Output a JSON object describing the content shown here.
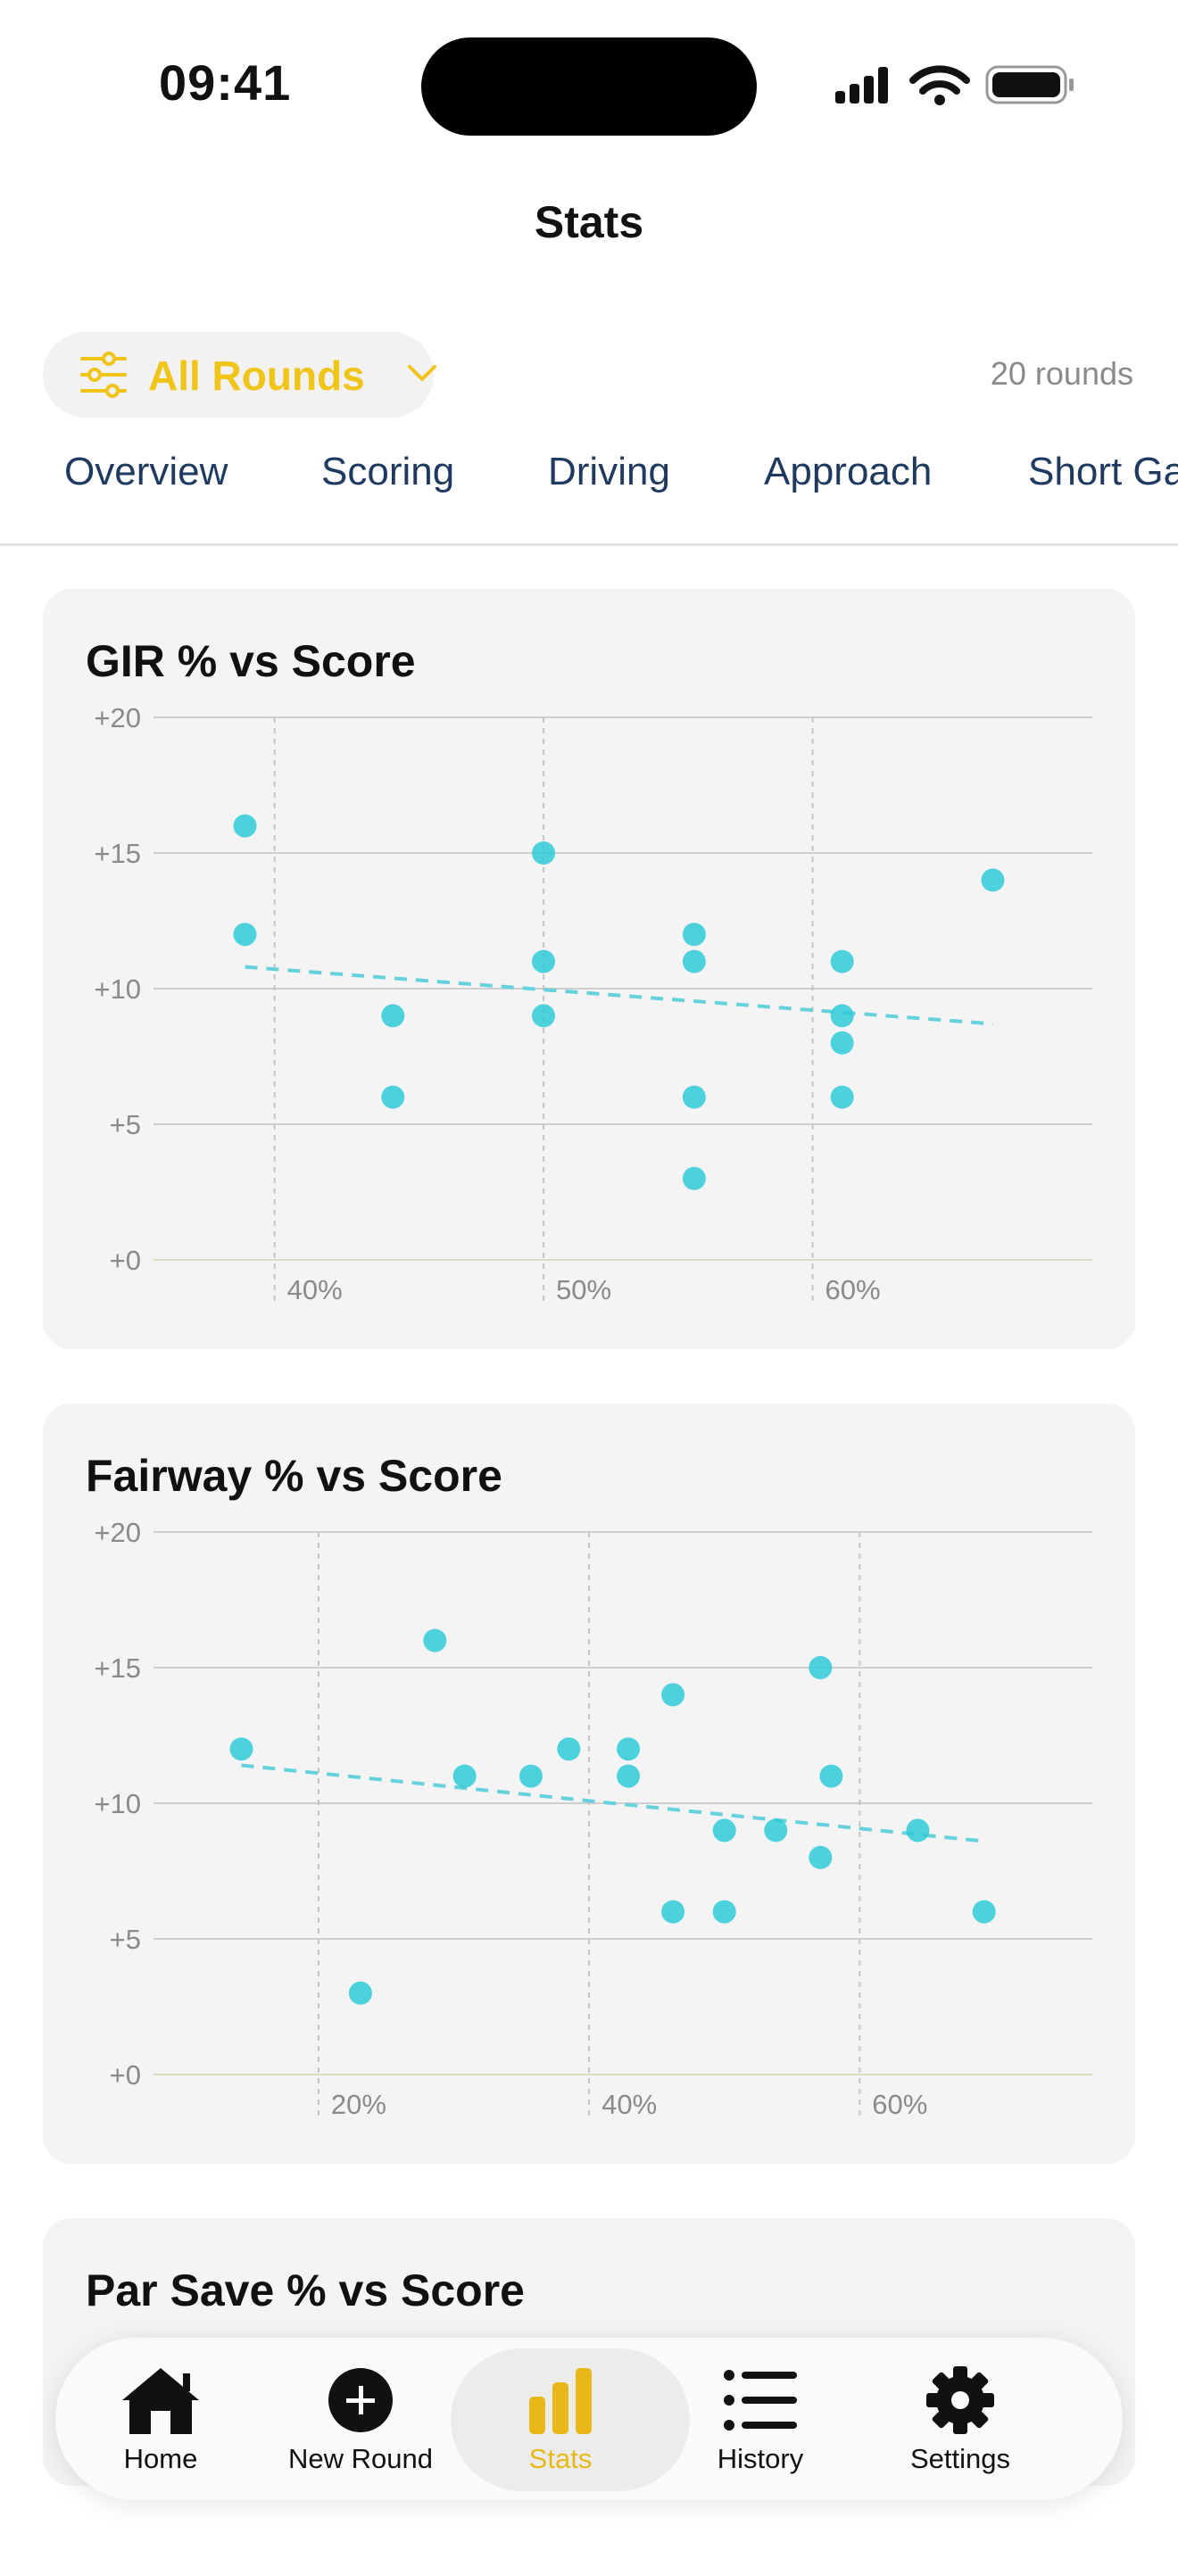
{
  "status": {
    "time": "09:41"
  },
  "nav": {
    "title": "Stats"
  },
  "filter": {
    "label": "All Rounds",
    "count": "20 rounds"
  },
  "tabs": [
    "Overview",
    "Scoring",
    "Driving",
    "Approach",
    "Short Game"
  ],
  "colors": {
    "accent": "#f0c419",
    "point": "#2ecad8",
    "trend": "#63d2dc",
    "tab_text": "#1f3a5f"
  },
  "chart_data": [
    {
      "type": "scatter",
      "title": "GIR % vs Score",
      "y_ticks": [
        "+20",
        "+15",
        "+10",
        "+5",
        "+0"
      ],
      "x_ticks": [
        "40%",
        "50%",
        "60%"
      ],
      "x_tick_values": [
        40,
        50,
        60
      ],
      "xlim": [
        35.5,
        70.4
      ],
      "ylim": [
        0,
        20
      ],
      "grid": true,
      "points": [
        {
          "x": 38.9,
          "y": 16
        },
        {
          "x": 38.9,
          "y": 12
        },
        {
          "x": 44.4,
          "y": 9
        },
        {
          "x": 44.4,
          "y": 6
        },
        {
          "x": 50,
          "y": 15
        },
        {
          "x": 50,
          "y": 11
        },
        {
          "x": 50,
          "y": 9
        },
        {
          "x": 55.6,
          "y": 12
        },
        {
          "x": 55.6,
          "y": 11
        },
        {
          "x": 55.6,
          "y": 6
        },
        {
          "x": 55.6,
          "y": 3
        },
        {
          "x": 61.1,
          "y": 11
        },
        {
          "x": 61.1,
          "y": 9
        },
        {
          "x": 61.1,
          "y": 8
        },
        {
          "x": 61.1,
          "y": 6
        },
        {
          "x": 66.7,
          "y": 14
        }
      ],
      "trend": {
        "x1": 38.9,
        "y1": 10.8,
        "x2": 66.7,
        "y2": 8.7
      }
    },
    {
      "type": "scatter",
      "title": "Fairway % vs Score",
      "y_ticks": [
        "+20",
        "+15",
        "+10",
        "+5",
        "+0"
      ],
      "x_ticks": [
        "20%",
        "40%",
        "60%"
      ],
      "x_tick_values": [
        20,
        40,
        60
      ],
      "xlim": [
        7.8,
        77.2
      ],
      "ylim": [
        0,
        20
      ],
      "grid": true,
      "points": [
        {
          "x": 14.3,
          "y": 12
        },
        {
          "x": 23.1,
          "y": 3
        },
        {
          "x": 28.6,
          "y": 16
        },
        {
          "x": 30.8,
          "y": 11
        },
        {
          "x": 35.7,
          "y": 11
        },
        {
          "x": 38.5,
          "y": 12
        },
        {
          "x": 42.9,
          "y": 12
        },
        {
          "x": 42.9,
          "y": 11
        },
        {
          "x": 46.2,
          "y": 14
        },
        {
          "x": 46.2,
          "y": 6
        },
        {
          "x": 50,
          "y": 9
        },
        {
          "x": 50,
          "y": 6
        },
        {
          "x": 53.8,
          "y": 9
        },
        {
          "x": 57.1,
          "y": 15
        },
        {
          "x": 57.1,
          "y": 8
        },
        {
          "x": 57.9,
          "y": 11
        },
        {
          "x": 64.3,
          "y": 9
        },
        {
          "x": 69.2,
          "y": 6
        }
      ],
      "trend": {
        "x1": 14.3,
        "y1": 11.4,
        "x2": 69.2,
        "y2": 8.6
      }
    }
  ],
  "partial_card": {
    "title": "Par Save % vs Score"
  },
  "tab_bar": {
    "items": [
      {
        "label": "Home",
        "icon": "house-icon"
      },
      {
        "label": "New Round",
        "icon": "plus-circle-icon"
      },
      {
        "label": "Stats",
        "icon": "bar-chart-icon"
      },
      {
        "label": "History",
        "icon": "list-icon"
      },
      {
        "label": "Settings",
        "icon": "gear-icon"
      }
    ],
    "active": "Stats"
  }
}
